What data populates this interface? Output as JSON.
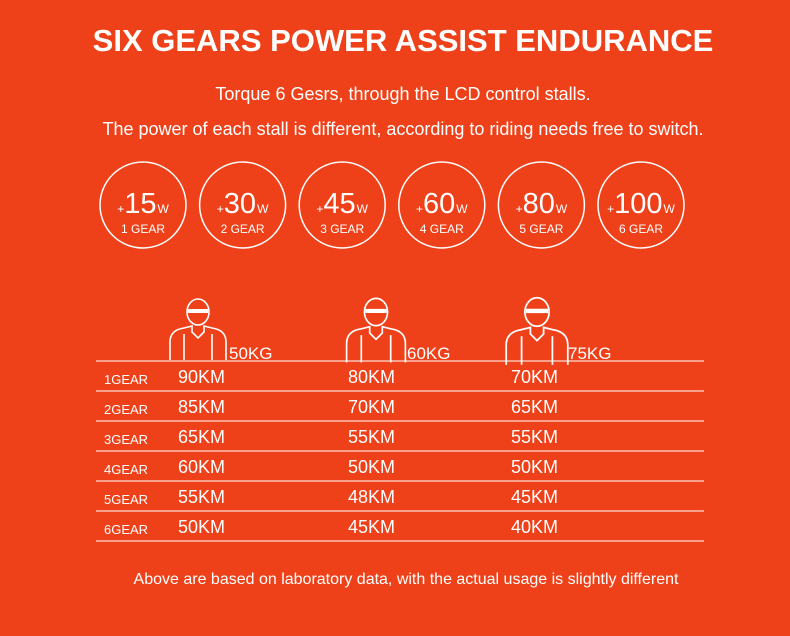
{
  "header": {
    "title": "SIX GEARS  POWER ASSIST ENDURANCE",
    "lines": [
      "Torque 6 Gesrs, through the LCD control stalls.",
      "The power of each stall is different, according to riding needs free to switch."
    ]
  },
  "gears": [
    {
      "sign": "+",
      "value": "15",
      "unit": "W",
      "label": "1 GEAR"
    },
    {
      "sign": "+",
      "value": "30",
      "unit": "W",
      "label": "2 GEAR"
    },
    {
      "sign": "+",
      "value": "45",
      "unit": "W",
      "label": "3 GEAR"
    },
    {
      "sign": "+",
      "value": "60",
      "unit": "W",
      "label": "4 GEAR"
    },
    {
      "sign": "+",
      "value": "80",
      "unit": "W",
      "label": "5 GEAR"
    },
    {
      "sign": "+",
      "value": "100",
      "unit": "W",
      "label": "6 GEAR"
    }
  ],
  "table": {
    "riders": [
      "50KG",
      "60KG",
      "75KG"
    ],
    "rows": [
      [
        "1GEAR",
        "90KM",
        "80KM",
        "70KM"
      ],
      [
        "2GEAR",
        "85KM",
        "70KM",
        "65KM"
      ],
      [
        "3GEAR",
        "65KM",
        "55KM",
        "55KM"
      ],
      [
        "4GEAR",
        "60KM",
        "50KM",
        "50KM"
      ],
      [
        "5GEAR",
        "55KM",
        "48KM",
        "45KM"
      ],
      [
        "6GEAR",
        "50KM",
        "45KM",
        "40KM"
      ]
    ]
  },
  "footnote": "Above are based on laboratory data, with the actual usage is slightly different"
}
